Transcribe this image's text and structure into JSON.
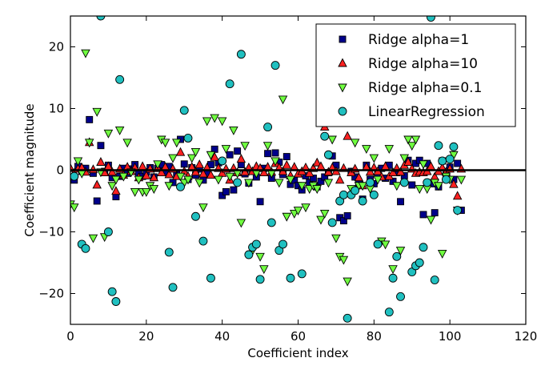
{
  "chart_data": {
    "type": "scatter",
    "title": "",
    "xlabel": "Coefficient index",
    "ylabel": "Coefficient magnitude",
    "xlim": [
      0,
      120
    ],
    "ylim": [
      -25,
      25
    ],
    "xticks": [
      0,
      20,
      40,
      60,
      80,
      100,
      120
    ],
    "yticks": [
      -20,
      -10,
      0,
      10,
      20
    ],
    "xtick_labels": [
      "0",
      "20",
      "40",
      "60",
      "80",
      "100",
      "120"
    ],
    "ytick_labels": [
      "−20",
      "−10",
      "0",
      "10",
      "20"
    ],
    "hline": {
      "y": 0,
      "color": "#000000"
    },
    "legend_position": "top-right",
    "series": [
      {
        "name": "Ridge alpha=1",
        "marker": "square",
        "color": "#00008b",
        "x": [
          0,
          1,
          2,
          3,
          4,
          5,
          6,
          7,
          8,
          9,
          10,
          11,
          12,
          13,
          14,
          15,
          16,
          17,
          18,
          19,
          20,
          21,
          22,
          23,
          24,
          25,
          26,
          27,
          28,
          29,
          30,
          31,
          32,
          33,
          34,
          35,
          36,
          37,
          38,
          39,
          40,
          41,
          42,
          43,
          44,
          45,
          46,
          47,
          48,
          49,
          50,
          51,
          52,
          53,
          54,
          55,
          56,
          57,
          58,
          59,
          60,
          61,
          62,
          63,
          64,
          65,
          66,
          67,
          68,
          69,
          70,
          71,
          72,
          73,
          74,
          75,
          76,
          77,
          78,
          79,
          80,
          81,
          82,
          83,
          84,
          85,
          86,
          87,
          88,
          89,
          90,
          91,
          92,
          93,
          94,
          95,
          96,
          97,
          98,
          99,
          100,
          101,
          102,
          103
        ],
        "y": [
          -1.4,
          -1.6,
          0.6,
          -0.2,
          0.3,
          8.2,
          -0.5,
          -5,
          4,
          -0.2,
          0.8,
          -1.2,
          -4.3,
          -1,
          0.3,
          -0.5,
          0.2,
          0.9,
          -0.6,
          -1,
          -0.3,
          0.4,
          -1.1,
          0.3,
          0.9,
          -0.4,
          0.6,
          -2,
          -0.7,
          5,
          1,
          -1.5,
          0.4,
          -0.8,
          0.2,
          -1.6,
          -0.6,
          0.9,
          3.4,
          1.2,
          -4.1,
          -3.5,
          2.5,
          -3.2,
          3.1,
          0.9,
          -0.6,
          -2.1,
          -0.2,
          -1.1,
          -5.1,
          0.3,
          2.7,
          -1.3,
          2.8,
          1.3,
          -0.7,
          2.2,
          -2.3,
          -1.6,
          -2.5,
          -3.2,
          -0.9,
          -2,
          -1.3,
          -2.7,
          -1.8,
          -1.1,
          -0.4,
          2.3,
          0.8,
          -7.7,
          -8.2,
          -7.4,
          -0.2,
          -1.1,
          -2.1,
          -4.7,
          0.8,
          -1.5,
          -2.2,
          -0.6,
          0.3,
          -1.3,
          0.8,
          -1.8,
          -0.4,
          -5.1,
          -0.9,
          1.6,
          -2.4,
          1.1,
          1.6,
          -7.2,
          1.1,
          -2.2,
          -6.9,
          -2.7,
          1.5,
          -0.8,
          0.5,
          -1.5,
          1.1,
          -6.5
        ]
      },
      {
        "name": "Ridge alpha=10",
        "marker": "triangle-up",
        "color": "#ff2020",
        "x": [
          0,
          1,
          2,
          3,
          4,
          5,
          6,
          7,
          8,
          9,
          10,
          11,
          12,
          13,
          14,
          15,
          16,
          17,
          18,
          19,
          20,
          21,
          22,
          23,
          24,
          25,
          26,
          27,
          28,
          29,
          30,
          31,
          32,
          33,
          34,
          35,
          36,
          37,
          38,
          39,
          40,
          41,
          42,
          43,
          44,
          45,
          46,
          47,
          48,
          49,
          50,
          51,
          52,
          53,
          54,
          55,
          56,
          57,
          58,
          59,
          60,
          61,
          62,
          63,
          64,
          65,
          66,
          67,
          68,
          69,
          70,
          71,
          72,
          73,
          74,
          75,
          76,
          77,
          78,
          79,
          80,
          81,
          82,
          83,
          84,
          85,
          86,
          87,
          88,
          89,
          90,
          91,
          92,
          93,
          94,
          95,
          96,
          97,
          98,
          99,
          100,
          101,
          102,
          103
        ],
        "y": [
          0.3,
          -0.5,
          0.2,
          0.4,
          -0.3,
          4.5,
          0.1,
          -2.4,
          1.3,
          -0.4,
          0.6,
          -0.3,
          -3.4,
          0.2,
          -0.8,
          0.5,
          -0.2,
          0.4,
          -1.2,
          0.6,
          -0.9,
          0.2,
          -1.2,
          0.3,
          -0.4,
          0.5,
          -0.7,
          0.2,
          -1,
          2.9,
          -0.2,
          -1,
          0.5,
          -0.3,
          0.9,
          -0.6,
          0.4,
          -0.8,
          2.1,
          0.3,
          -0.5,
          0.2,
          -1.6,
          0.3,
          -0.4,
          1.8,
          -0.3,
          0.4,
          -0.2,
          0.6,
          0.3,
          -0.4,
          0.5,
          -0.3,
          1.1,
          0.4,
          -0.2,
          0.8,
          -0.9,
          0.5,
          -0.6,
          -0.2,
          0.4,
          -0.5,
          0.3,
          1.2,
          0.6,
          7,
          -0.3,
          0.4,
          -0.2,
          -1.6,
          0.3,
          5.5,
          -0.4,
          0.2,
          -1.2,
          -2.5,
          0.5,
          -0.3,
          0.4,
          -0.2,
          -1.1,
          0.6,
          -1,
          -0.4,
          0.3,
          -0.3,
          0.8,
          1.3,
          0.2,
          -0.5,
          -0.3,
          -0.4,
          -0.2,
          0.6,
          -1.1,
          -0.2,
          0.4,
          -0.3,
          0.2,
          -2.3,
          -4.2,
          0.2
        ]
      },
      {
        "name": "Ridge alpha=0.1",
        "marker": "triangle-down",
        "color": "#70ff40",
        "x": [
          0,
          1,
          2,
          3,
          4,
          5,
          6,
          7,
          8,
          9,
          10,
          11,
          12,
          13,
          14,
          15,
          16,
          17,
          18,
          19,
          20,
          21,
          22,
          23,
          24,
          25,
          26,
          27,
          28,
          29,
          30,
          31,
          32,
          33,
          34,
          35,
          36,
          37,
          38,
          39,
          40,
          41,
          42,
          43,
          44,
          45,
          46,
          47,
          48,
          49,
          50,
          51,
          52,
          53,
          54,
          55,
          56,
          57,
          58,
          59,
          60,
          61,
          62,
          63,
          64,
          65,
          66,
          67,
          68,
          69,
          70,
          71,
          72,
          73,
          74,
          75,
          76,
          77,
          78,
          79,
          80,
          81,
          82,
          83,
          84,
          85,
          86,
          87,
          88,
          89,
          90,
          91,
          92,
          93,
          94,
          95,
          96,
          97,
          98,
          99,
          100,
          101,
          102,
          103
        ],
        "y": [
          -5.5,
          -6,
          1.5,
          -0.5,
          19,
          4.5,
          -11,
          9.5,
          -0.3,
          -10.8,
          6,
          -2.5,
          -1.5,
          6.5,
          -1,
          4.5,
          -0.3,
          -3.5,
          -1.5,
          -3.5,
          -3.5,
          -2.5,
          -3,
          1,
          5,
          4.5,
          -2.5,
          2,
          4.5,
          -1,
          -2,
          -1.5,
          2,
          3,
          -2,
          -6,
          8,
          2.5,
          8.5,
          -1.5,
          8,
          3.5,
          -1,
          6.5,
          -0.5,
          -8.5,
          4,
          -2,
          -13,
          -0.5,
          -14,
          -16,
          4,
          -0.5,
          1.5,
          -2,
          11.5,
          -7.5,
          -1.5,
          -7,
          -6.5,
          -2.5,
          -6,
          -3,
          -2.5,
          -3,
          -8,
          -7,
          -2,
          5,
          -11,
          -14,
          -14.5,
          -18,
          -3,
          4.5,
          -2.5,
          -2.5,
          3.5,
          -3,
          2,
          -1.5,
          -11.5,
          -12,
          3.5,
          -16,
          -2.5,
          -13,
          2,
          5,
          4,
          5,
          -3,
          1,
          -3,
          -8,
          -2,
          -2.5,
          -13.5,
          -1,
          -1.5,
          2.5,
          -6.5,
          -1.5
        ]
      },
      {
        "name": "LinearRegression",
        "marker": "circle",
        "color": "#20c0c0",
        "x": [
          1,
          3,
          4,
          8,
          10,
          11,
          12,
          13,
          26,
          27,
          29,
          30,
          31,
          33,
          35,
          37,
          40,
          42,
          44,
          45,
          47,
          48,
          49,
          50,
          52,
          53,
          54,
          55,
          56,
          58,
          61,
          67,
          68,
          69,
          71,
          72,
          73,
          74,
          75,
          77,
          79,
          80,
          81,
          84,
          85,
          86,
          87,
          88,
          90,
          91,
          92,
          93,
          94,
          95,
          96,
          97,
          98,
          99,
          100,
          101,
          102
        ],
        "y": [
          -1,
          -12,
          -12.7,
          25,
          -10,
          -19.7,
          -21.3,
          14.7,
          -13.3,
          -19,
          -2.7,
          9.7,
          5.2,
          -7.5,
          -11.5,
          -17.5,
          1.5,
          14,
          -2,
          18.8,
          -13.7,
          -12.5,
          -12,
          -17.7,
          7,
          -8.5,
          17,
          -13,
          -12,
          -17.5,
          -16.8,
          5.5,
          2.5,
          -8.5,
          -5,
          -4,
          -24,
          -4,
          -3.3,
          -5,
          -2,
          -4,
          -12,
          -23,
          -17.5,
          -14,
          -20.5,
          -2,
          -16.5,
          -15.5,
          -15,
          -12.5,
          -2,
          24.8,
          -17.8,
          4,
          1.5,
          -1.5,
          1.8,
          3.8,
          -6.5
        ]
      }
    ]
  }
}
